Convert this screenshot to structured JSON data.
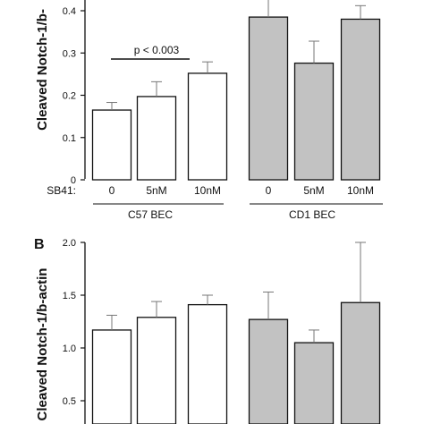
{
  "chart_data": [
    {
      "type": "bar",
      "panel_label": "",
      "ylabel": "Cleaved Notch-1/b-",
      "ylim": [
        0,
        0.45
      ],
      "yticks": [
        "0",
        "0.1",
        "0.2",
        "0.3",
        "0.4"
      ],
      "treatment_label": "SB41:",
      "groups": [
        {
          "name": "C57 BEC",
          "color": "#ffffff",
          "categories": [
            "0",
            "5nM",
            "10nM"
          ],
          "values": [
            0.165,
            0.197,
            0.252
          ],
          "errors": [
            0.018,
            0.035,
            0.027
          ]
        },
        {
          "name": "CD1 BEC",
          "color": "#c2c2c2",
          "categories": [
            "0",
            "5nM",
            "10nM"
          ],
          "values": [
            0.385,
            0.276,
            0.38
          ],
          "errors": [
            0.045,
            0.052,
            0.032
          ]
        }
      ],
      "annotation": "p < 0.003"
    },
    {
      "type": "bar",
      "panel_label": "B",
      "ylabel": "Cleaved Notch-1/b-actin",
      "ylim": [
        0,
        2.0
      ],
      "yticks": [
        "0.5",
        "1.0",
        "1.5",
        "2.0"
      ],
      "groups": [
        {
          "name": "",
          "color": "#ffffff",
          "values": [
            1.17,
            1.29,
            1.41
          ],
          "errors": [
            0.14,
            0.15,
            0.09
          ]
        },
        {
          "name": "",
          "color": "#c2c2c2",
          "values": [
            1.27,
            1.05,
            1.43
          ],
          "errors": [
            0.26,
            0.12,
            0.57
          ]
        }
      ]
    }
  ]
}
